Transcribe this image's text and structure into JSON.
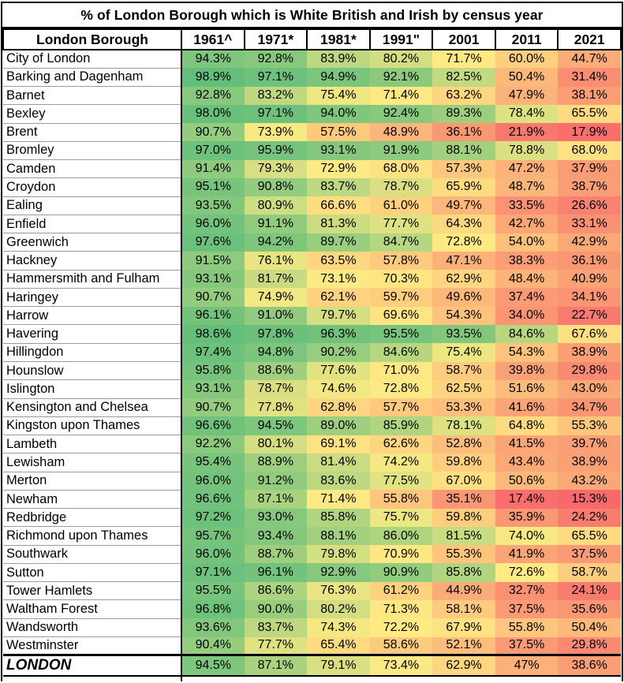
{
  "title": "% of London Borough which is White British and Irish by census year",
  "chart_data": {
    "type": "heatmap",
    "title": "% of London Borough which is White British and Irish by census year",
    "columns": [
      "London Borough",
      "1961^",
      "1971*",
      "1981*",
      "1991\"",
      "2001",
      "2011",
      "2021"
    ],
    "rows": [
      {
        "name": "City of London",
        "values": [
          "94.3%",
          "92.8%",
          "83.9%",
          "80.2%",
          "71.7%",
          "60.0%",
          "44.7%"
        ]
      },
      {
        "name": "Barking and Dagenham",
        "values": [
          "98.9%",
          "97.1%",
          "94.9%",
          "92.1%",
          "82.5%",
          "50.4%",
          "31.4%"
        ]
      },
      {
        "name": "Barnet",
        "values": [
          "92.8%",
          "83.2%",
          "75.4%",
          "71.4%",
          "63.2%",
          "47.9%",
          "38.1%"
        ]
      },
      {
        "name": "Bexley",
        "values": [
          "98.0%",
          "97.1%",
          "94.0%",
          "92.4%",
          "89.3%",
          "78.4%",
          "65.5%"
        ]
      },
      {
        "name": "Brent",
        "values": [
          "90.7%",
          "73.9%",
          "57.5%",
          "48.9%",
          "36.1%",
          "21.9%",
          "17.9%"
        ]
      },
      {
        "name": "Bromley",
        "values": [
          "97.0%",
          "95.9%",
          "93.1%",
          "91.9%",
          "88.1%",
          "78.8%",
          "68.0%"
        ]
      },
      {
        "name": "Camden",
        "values": [
          "91.4%",
          "79.3%",
          "72.9%",
          "68.0%",
          "57.3%",
          "47.2%",
          "37.9%"
        ]
      },
      {
        "name": "Croydon",
        "values": [
          "95.1%",
          "90.8%",
          "83.7%",
          "78.7%",
          "65.9%",
          "48.7%",
          "38.7%"
        ]
      },
      {
        "name": "Ealing",
        "values": [
          "93.5%",
          "80.9%",
          "66.6%",
          "61.0%",
          "49.7%",
          "33.5%",
          "26.6%"
        ]
      },
      {
        "name": "Enfield",
        "values": [
          "96.0%",
          "91.1%",
          "81.3%",
          "77.7%",
          "64.3%",
          "42.7%",
          "33.1%"
        ]
      },
      {
        "name": "Greenwich",
        "values": [
          "97.6%",
          "94.2%",
          "89.7%",
          "84.7%",
          "72.8%",
          "54.0%",
          "42.9%"
        ]
      },
      {
        "name": "Hackney",
        "values": [
          "91.5%",
          "76.1%",
          "63.5%",
          "57.8%",
          "47.1%",
          "38.3%",
          "36.1%"
        ]
      },
      {
        "name": "Hammersmith and Fulham",
        "values": [
          "93.1%",
          "81.7%",
          "73.1%",
          "70.3%",
          "62.9%",
          "48.4%",
          "40.9%"
        ]
      },
      {
        "name": "Haringey",
        "values": [
          "90.7%",
          "74.9%",
          "62.1%",
          "59.7%",
          "49.6%",
          "37.4%",
          "34.1%"
        ]
      },
      {
        "name": "Harrow",
        "values": [
          "96.1%",
          "91.0%",
          "79.7%",
          "69.6%",
          "54.3%",
          "34.0%",
          "22.7%"
        ]
      },
      {
        "name": "Havering",
        "values": [
          "98.6%",
          "97.8%",
          "96.3%",
          "95.5%",
          "93.5%",
          "84.6%",
          "67.6%"
        ]
      },
      {
        "name": "Hillingdon",
        "values": [
          "97.4%",
          "94.8%",
          "90.2%",
          "84.6%",
          "75.4%",
          "54.3%",
          "38.9%"
        ]
      },
      {
        "name": "Hounslow",
        "values": [
          "95.8%",
          "88.6%",
          "77.6%",
          "71.0%",
          "58.7%",
          "39.8%",
          "29.8%"
        ]
      },
      {
        "name": "Islington",
        "values": [
          "93.1%",
          "78.7%",
          "74.6%",
          "72.8%",
          "62.5%",
          "51.6%",
          "43.0%"
        ]
      },
      {
        "name": "Kensington and Chelsea",
        "values": [
          "90.7%",
          "77.8%",
          "62.8%",
          "57.7%",
          "53.3%",
          "41.6%",
          "34.7%"
        ]
      },
      {
        "name": "Kingston upon Thames",
        "values": [
          "96.6%",
          "94.5%",
          "89.0%",
          "85.9%",
          "78.1%",
          "64.8%",
          "55.3%"
        ]
      },
      {
        "name": "Lambeth",
        "values": [
          "92.2%",
          "80.1%",
          "69.1%",
          "62.6%",
          "52.8%",
          "41.5%",
          "39.7%"
        ]
      },
      {
        "name": "Lewisham",
        "values": [
          "95.4%",
          "88.9%",
          "81.4%",
          "74.2%",
          "59.8%",
          "43.4%",
          "38.9%"
        ]
      },
      {
        "name": "Merton",
        "values": [
          "96.0%",
          "91.2%",
          "83.6%",
          "77.5%",
          "67.0%",
          "50.6%",
          "43.2%"
        ]
      },
      {
        "name": "Newham",
        "values": [
          "96.6%",
          "87.1%",
          "71.4%",
          "55.8%",
          "35.1%",
          "17.4%",
          "15.3%"
        ]
      },
      {
        "name": "Redbridge",
        "values": [
          "97.2%",
          "93.0%",
          "85.8%",
          "75.7%",
          "59.8%",
          "35.9%",
          "24.2%"
        ]
      },
      {
        "name": "Richmond upon Thames",
        "values": [
          "95.7%",
          "93.4%",
          "88.1%",
          "86.0%",
          "81.5%",
          "74.0%",
          "65.5%"
        ]
      },
      {
        "name": "Southwark",
        "values": [
          "96.0%",
          "88.7%",
          "79.8%",
          "70.9%",
          "55.3%",
          "41.9%",
          "37.5%"
        ]
      },
      {
        "name": "Sutton",
        "values": [
          "97.1%",
          "96.1%",
          "92.9%",
          "90.9%",
          "85.8%",
          "72.6%",
          "58.7%"
        ]
      },
      {
        "name": "Tower Hamlets",
        "values": [
          "95.5%",
          "86.6%",
          "76.3%",
          "61.2%",
          "44.9%",
          "32.7%",
          "24.1%"
        ]
      },
      {
        "name": "Waltham Forest",
        "values": [
          "96.8%",
          "90.0%",
          "80.2%",
          "71.3%",
          "58.1%",
          "37.5%",
          "35.6%"
        ]
      },
      {
        "name": "Wandsworth",
        "values": [
          "93.6%",
          "83.7%",
          "74.3%",
          "72.2%",
          "67.9%",
          "55.8%",
          "50.4%"
        ]
      },
      {
        "name": "Westminster",
        "values": [
          "90.4%",
          "77.7%",
          "65.4%",
          "58.6%",
          "52.1%",
          "37.5%",
          "29.8%"
        ]
      }
    ],
    "footer": {
      "name": "LONDON",
      "values": [
        "94.5%",
        "87.1%",
        "79.1%",
        "73.4%",
        "62.9%",
        "47%",
        "38.6%"
      ]
    },
    "color_scale": {
      "min_value": 15.3,
      "mid_value": 72.5,
      "max_value": 98.9,
      "min_color": "#F8696B",
      "mid_color": "#FFEB84",
      "max_color": "#63BE7B"
    }
  }
}
